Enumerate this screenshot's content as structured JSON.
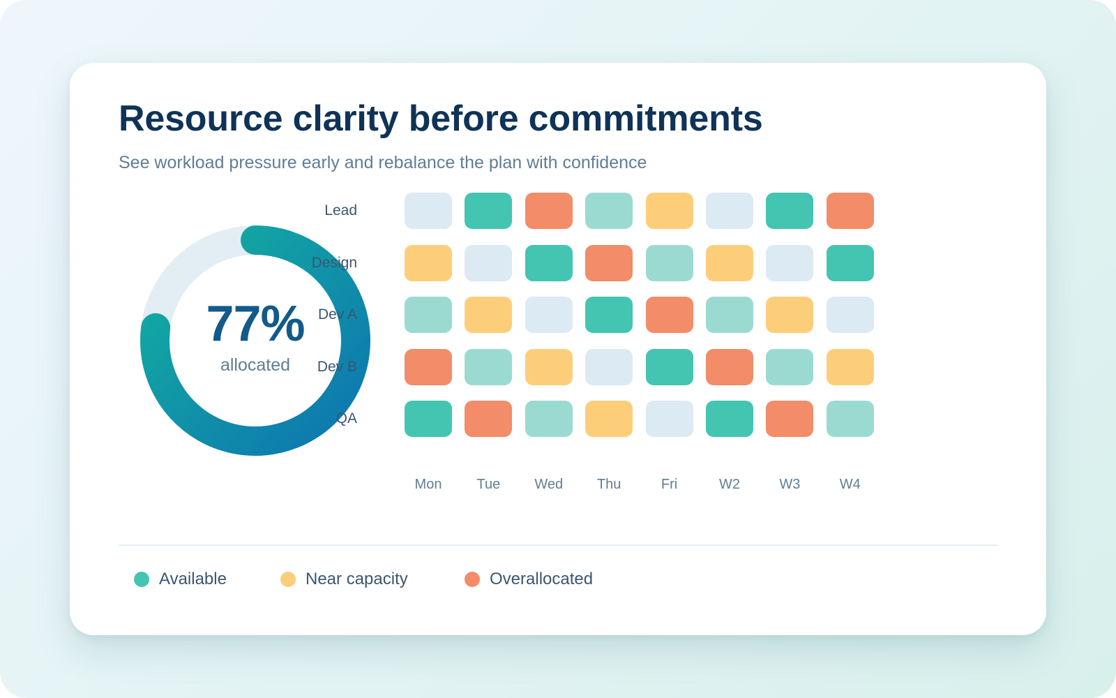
{
  "header": {
    "title": "Resource clarity before commitments",
    "subtitle": "See workload pressure early and rebalance the plan with confidence"
  },
  "gauge": {
    "value_label": "77%",
    "caption": "allocated",
    "fraction": 0.77,
    "track_color": "#e3edf4",
    "arc_color_start": "#14b0a0",
    "arc_color_end": "#0d75b0"
  },
  "legend": [
    {
      "label": "Available",
      "color": "#43c5b1"
    },
    {
      "label": "Near capacity",
      "color": "#fdce7a"
    },
    {
      "label": "Overallocated",
      "color": "#f28c69"
    }
  ],
  "status_colors": {
    "idle": "#dceaf4",
    "light": "#9bdad1",
    "available": "#43c5b1",
    "near": "#fdce7a",
    "over": "#f28c69"
  },
  "chart_data": [
    {
      "type": "pie",
      "title": "",
      "slices": [
        {
          "name": "allocated",
          "value": 77
        },
        {
          "name": "",
          "value": 23
        }
      ],
      "center_label": "77%",
      "center_caption": "allocated"
    },
    {
      "type": "heatmap",
      "title": "",
      "rows": [
        "Lead",
        "Design",
        "Dev A",
        "Dev B",
        "QA"
      ],
      "columns": [
        "Mon",
        "Tue",
        "Wed",
        "Thu",
        "Fri",
        "W2",
        "W3",
        "W4"
      ],
      "values": [
        [
          "idle",
          "available",
          "over",
          "light",
          "near",
          "idle",
          "available",
          "over"
        ],
        [
          "near",
          "idle",
          "available",
          "over",
          "light",
          "near",
          "idle",
          "available"
        ],
        [
          "light",
          "near",
          "idle",
          "available",
          "over",
          "light",
          "near",
          "idle"
        ],
        [
          "over",
          "light",
          "near",
          "idle",
          "available",
          "over",
          "light",
          "near"
        ],
        [
          "available",
          "over",
          "light",
          "near",
          "idle",
          "available",
          "over",
          "light"
        ]
      ],
      "legend": [
        "Available",
        "Near capacity",
        "Overallocated"
      ],
      "legend_placement": "bottom-left"
    }
  ]
}
